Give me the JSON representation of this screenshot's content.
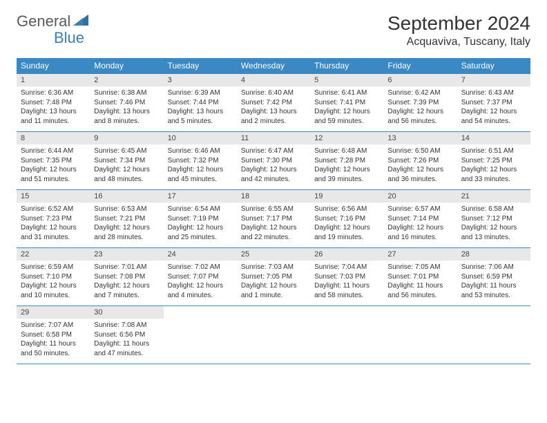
{
  "logo": {
    "part1": "General",
    "part2": "Blue"
  },
  "title": "September 2024",
  "location": "Acquaviva, Tuscany, Italy",
  "colors": {
    "header_bg": "#3b89c4",
    "header_fg": "#ffffff",
    "daynum_bg": "#e8e8e8",
    "border": "#3b89c4",
    "logo_gray": "#5a5a5a",
    "logo_blue": "#3a7fb5",
    "text": "#333333",
    "page_bg": "#ffffff"
  },
  "typography": {
    "title_fontsize": 28,
    "location_fontsize": 16,
    "dayheader_fontsize": 12,
    "daynum_fontsize": 11,
    "body_fontsize": 10
  },
  "day_names": [
    "Sunday",
    "Monday",
    "Tuesday",
    "Wednesday",
    "Thursday",
    "Friday",
    "Saturday"
  ],
  "labels": {
    "sunrise": "Sunrise: ",
    "sunset": "Sunset: ",
    "daylight": "Daylight: "
  },
  "days": [
    {
      "n": 1,
      "sunrise": "6:36 AM",
      "sunset": "7:48 PM",
      "daylight": "13 hours and 11 minutes."
    },
    {
      "n": 2,
      "sunrise": "6:38 AM",
      "sunset": "7:46 PM",
      "daylight": "13 hours and 8 minutes."
    },
    {
      "n": 3,
      "sunrise": "6:39 AM",
      "sunset": "7:44 PM",
      "daylight": "13 hours and 5 minutes."
    },
    {
      "n": 4,
      "sunrise": "6:40 AM",
      "sunset": "7:42 PM",
      "daylight": "13 hours and 2 minutes."
    },
    {
      "n": 5,
      "sunrise": "6:41 AM",
      "sunset": "7:41 PM",
      "daylight": "12 hours and 59 minutes."
    },
    {
      "n": 6,
      "sunrise": "6:42 AM",
      "sunset": "7:39 PM",
      "daylight": "12 hours and 56 minutes."
    },
    {
      "n": 7,
      "sunrise": "6:43 AM",
      "sunset": "7:37 PM",
      "daylight": "12 hours and 54 minutes."
    },
    {
      "n": 8,
      "sunrise": "6:44 AM",
      "sunset": "7:35 PM",
      "daylight": "12 hours and 51 minutes."
    },
    {
      "n": 9,
      "sunrise": "6:45 AM",
      "sunset": "7:34 PM",
      "daylight": "12 hours and 48 minutes."
    },
    {
      "n": 10,
      "sunrise": "6:46 AM",
      "sunset": "7:32 PM",
      "daylight": "12 hours and 45 minutes."
    },
    {
      "n": 11,
      "sunrise": "6:47 AM",
      "sunset": "7:30 PM",
      "daylight": "12 hours and 42 minutes."
    },
    {
      "n": 12,
      "sunrise": "6:48 AM",
      "sunset": "7:28 PM",
      "daylight": "12 hours and 39 minutes."
    },
    {
      "n": 13,
      "sunrise": "6:50 AM",
      "sunset": "7:26 PM",
      "daylight": "12 hours and 36 minutes."
    },
    {
      "n": 14,
      "sunrise": "6:51 AM",
      "sunset": "7:25 PM",
      "daylight": "12 hours and 33 minutes."
    },
    {
      "n": 15,
      "sunrise": "6:52 AM",
      "sunset": "7:23 PM",
      "daylight": "12 hours and 31 minutes."
    },
    {
      "n": 16,
      "sunrise": "6:53 AM",
      "sunset": "7:21 PM",
      "daylight": "12 hours and 28 minutes."
    },
    {
      "n": 17,
      "sunrise": "6:54 AM",
      "sunset": "7:19 PM",
      "daylight": "12 hours and 25 minutes."
    },
    {
      "n": 18,
      "sunrise": "6:55 AM",
      "sunset": "7:17 PM",
      "daylight": "12 hours and 22 minutes."
    },
    {
      "n": 19,
      "sunrise": "6:56 AM",
      "sunset": "7:16 PM",
      "daylight": "12 hours and 19 minutes."
    },
    {
      "n": 20,
      "sunrise": "6:57 AM",
      "sunset": "7:14 PM",
      "daylight": "12 hours and 16 minutes."
    },
    {
      "n": 21,
      "sunrise": "6:58 AM",
      "sunset": "7:12 PM",
      "daylight": "12 hours and 13 minutes."
    },
    {
      "n": 22,
      "sunrise": "6:59 AM",
      "sunset": "7:10 PM",
      "daylight": "12 hours and 10 minutes."
    },
    {
      "n": 23,
      "sunrise": "7:01 AM",
      "sunset": "7:08 PM",
      "daylight": "12 hours and 7 minutes."
    },
    {
      "n": 24,
      "sunrise": "7:02 AM",
      "sunset": "7:07 PM",
      "daylight": "12 hours and 4 minutes."
    },
    {
      "n": 25,
      "sunrise": "7:03 AM",
      "sunset": "7:05 PM",
      "daylight": "12 hours and 1 minute."
    },
    {
      "n": 26,
      "sunrise": "7:04 AM",
      "sunset": "7:03 PM",
      "daylight": "11 hours and 58 minutes."
    },
    {
      "n": 27,
      "sunrise": "7:05 AM",
      "sunset": "7:01 PM",
      "daylight": "11 hours and 56 minutes."
    },
    {
      "n": 28,
      "sunrise": "7:06 AM",
      "sunset": "6:59 PM",
      "daylight": "11 hours and 53 minutes."
    },
    {
      "n": 29,
      "sunrise": "7:07 AM",
      "sunset": "6:58 PM",
      "daylight": "11 hours and 50 minutes."
    },
    {
      "n": 30,
      "sunrise": "7:08 AM",
      "sunset": "6:56 PM",
      "daylight": "11 hours and 47 minutes."
    }
  ],
  "layout": {
    "start_day_index": 0,
    "weeks": 5,
    "cols": 7
  }
}
